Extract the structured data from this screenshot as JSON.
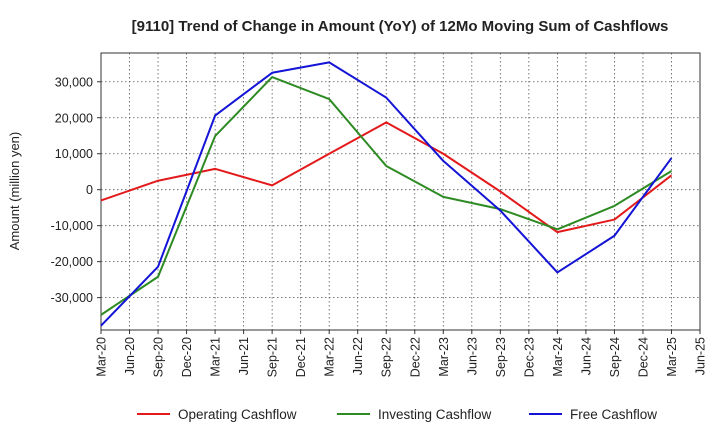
{
  "chart_data": {
    "type": "line",
    "title": "[9110]  Trend of Change in Amount (YoY) of 12Mo Moving Sum of Cashflows",
    "xlabel": "",
    "ylabel": "Amount (million yen)",
    "categories": [
      "Mar-20",
      "Jun-20",
      "Sep-20",
      "Dec-20",
      "Mar-21",
      "Jun-21",
      "Sep-21",
      "Dec-21",
      "Mar-22",
      "Jun-22",
      "Sep-22",
      "Dec-22",
      "Mar-23",
      "Jun-23",
      "Sep-23",
      "Dec-23",
      "Mar-24",
      "Jun-24",
      "Sep-24",
      "Dec-24",
      "Mar-25",
      "Jun-25"
    ],
    "y_ticks": [
      -30000,
      -20000,
      -10000,
      0,
      10000,
      20000,
      30000
    ],
    "y_tick_labels": [
      "-30,000",
      "-20,000",
      "-10,000",
      "0",
      "10,000",
      "20,000",
      "30,000"
    ],
    "ylim": [
      -39000,
      38000
    ],
    "grid": true,
    "legend_position": "bottom",
    "series": [
      {
        "name": "Operating Cashflow",
        "color": "#e31a1c",
        "values": [
          -3000,
          null,
          2500,
          null,
          5800,
          null,
          1200,
          null,
          10000,
          null,
          18700,
          null,
          10000,
          null,
          -500,
          null,
          -11800,
          null,
          -8300,
          null,
          4000,
          null
        ]
      },
      {
        "name": "Investing Cashflow",
        "color": "#2e8b24",
        "values": [
          -34800,
          null,
          -24200,
          null,
          14900,
          null,
          31300,
          null,
          25200,
          null,
          6600,
          null,
          -2000,
          null,
          -5400,
          null,
          -11000,
          null,
          -4500,
          null,
          5200,
          null
        ]
      },
      {
        "name": "Free Cashflow",
        "color": "#1414d6",
        "values": [
          -37800,
          null,
          -21400,
          null,
          20600,
          null,
          32500,
          null,
          35400,
          null,
          25600,
          null,
          8000,
          null,
          -5800,
          null,
          -23000,
          null,
          -12800,
          null,
          8800,
          null
        ]
      }
    ]
  }
}
